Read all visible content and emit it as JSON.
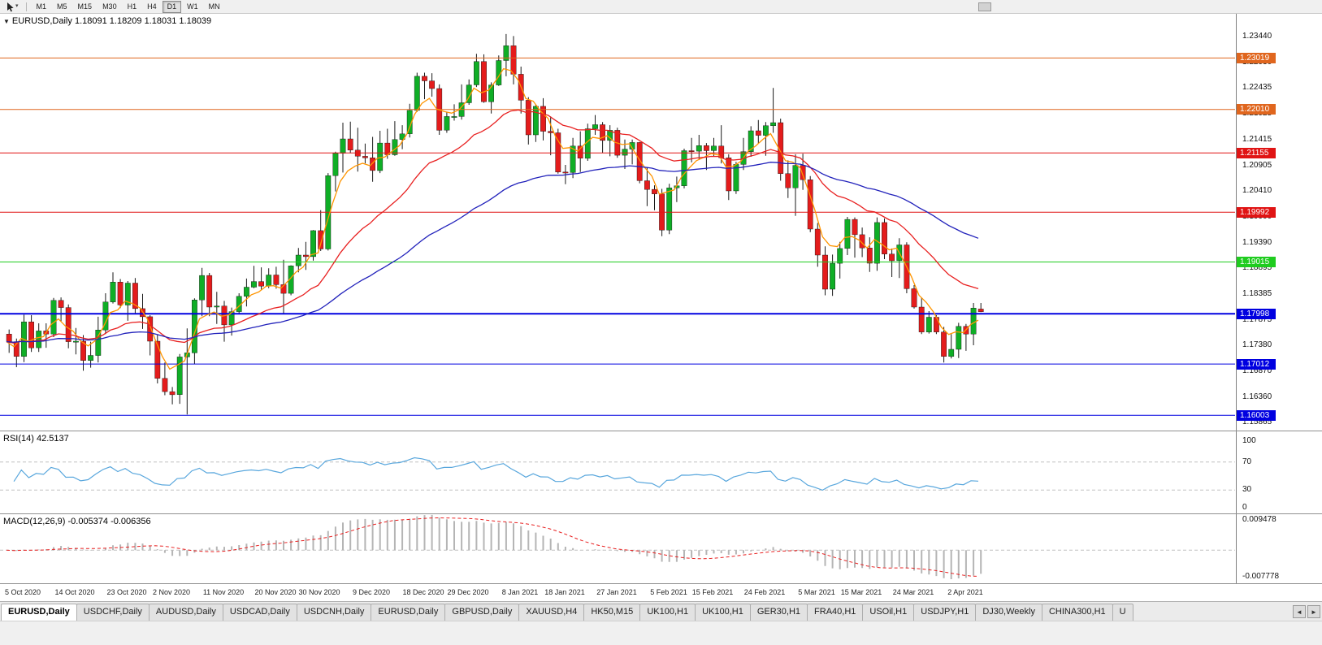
{
  "toolbar": {
    "caret": "▾",
    "timeframes": [
      {
        "label": "M1",
        "active": false
      },
      {
        "label": "M5",
        "active": false
      },
      {
        "label": "M15",
        "active": false
      },
      {
        "label": "M30",
        "active": false
      },
      {
        "label": "H1",
        "active": false
      },
      {
        "label": "H4",
        "active": false
      },
      {
        "label": "D1",
        "active": true
      },
      {
        "label": "W1",
        "active": false
      },
      {
        "label": "MN",
        "active": false
      }
    ]
  },
  "chart": {
    "menu_glyph": "▼",
    "symbol_title": "EURUSD,Daily",
    "ohlc_text": "1.18091 1.18209 1.18031 1.18039"
  },
  "chart_data": {
    "type": "candlestick",
    "symbol": "EURUSD",
    "period": "Daily",
    "last_ohlc": {
      "open": 1.18091,
      "high": 1.18209,
      "low": 1.18031,
      "close": 1.18039
    },
    "y_axis_ticks": [
      "1.23440",
      "1.22930",
      "1.22435",
      "1.21925",
      "1.21415",
      "1.20905",
      "1.20410",
      "1.19900",
      "1.19390",
      "1.18895",
      "1.18385",
      "1.17875",
      "1.17380",
      "1.16870",
      "1.16360",
      "1.15865"
    ],
    "h_lines": [
      {
        "price": 1.23019,
        "label": "1.23019",
        "color": "#e0661e",
        "width": 1
      },
      {
        "price": 1.2201,
        "label": "1.22010",
        "color": "#e0661e",
        "width": 1
      },
      {
        "price": 1.21155,
        "label": "1.21155",
        "color": "#e01414",
        "width": 1
      },
      {
        "price": 1.19992,
        "label": "1.19992",
        "color": "#e01414",
        "width": 1
      },
      {
        "price": 1.19015,
        "label": "1.19015",
        "color": "#1fcc1f",
        "width": 1
      },
      {
        "price": 1.17998,
        "label": "1.17998",
        "color": "#0000e0",
        "width": 2
      },
      {
        "price": 1.17012,
        "label": "1.17012",
        "color": "#0000e0",
        "width": 1
      },
      {
        "price": 1.16003,
        "label": "1.16003",
        "color": "#0000e0",
        "width": 1
      }
    ],
    "moving_averages": [
      {
        "name": "fast",
        "period": 5,
        "color": "#ff9500"
      },
      {
        "name": "medium",
        "period": 21,
        "color": "#e82020"
      },
      {
        "name": "slow",
        "period": 55,
        "color": "#2222bb"
      }
    ],
    "x_labels": [
      {
        "text": "5 Oct 2020",
        "i": 2
      },
      {
        "text": "14 Oct 2020",
        "i": 9
      },
      {
        "text": "23 Oct 2020",
        "i": 16
      },
      {
        "text": "2 Nov 2020",
        "i": 22
      },
      {
        "text": "11 Nov 2020",
        "i": 29
      },
      {
        "text": "20 Nov 2020",
        "i": 36
      },
      {
        "text": "30 Nov 2020",
        "i": 42
      },
      {
        "text": "9 Dec 2020",
        "i": 49
      },
      {
        "text": "18 Dec 2020",
        "i": 56
      },
      {
        "text": "29 Dec 2020",
        "i": 62
      },
      {
        "text": "8 Jan 2021",
        "i": 69
      },
      {
        "text": "18 Jan 2021",
        "i": 75
      },
      {
        "text": "27 Jan 2021",
        "i": 82
      },
      {
        "text": "5 Feb 2021",
        "i": 89
      },
      {
        "text": "15 Feb 2021",
        "i": 95
      },
      {
        "text": "24 Feb 2021",
        "i": 102
      },
      {
        "text": "5 Mar 2021",
        "i": 109
      },
      {
        "text": "15 Mar 2021",
        "i": 115
      },
      {
        "text": "24 Mar 2021",
        "i": 122
      },
      {
        "text": "2 Apr 2021",
        "i": 129
      }
    ],
    "candles": [
      [
        1.176,
        1.1769,
        1.1723,
        1.1745
      ],
      [
        1.1745,
        1.1751,
        1.1695,
        1.1716
      ],
      [
        1.1716,
        1.1798,
        1.1705,
        1.1784
      ],
      [
        1.1784,
        1.1797,
        1.1725,
        1.1733
      ],
      [
        1.1733,
        1.1781,
        1.1725,
        1.1766
      ],
      [
        1.1766,
        1.1781,
        1.1733,
        1.176
      ],
      [
        1.176,
        1.1831,
        1.1754,
        1.1826
      ],
      [
        1.1826,
        1.1832,
        1.1785,
        1.1812
      ],
      [
        1.1812,
        1.1818,
        1.1732,
        1.1745
      ],
      [
        1.1745,
        1.1772,
        1.172,
        1.1746
      ],
      [
        1.1746,
        1.1758,
        1.1688,
        1.1708
      ],
      [
        1.1708,
        1.1745,
        1.1694,
        1.1718
      ],
      [
        1.1718,
        1.1794,
        1.1704,
        1.1768
      ],
      [
        1.1768,
        1.184,
        1.176,
        1.1823
      ],
      [
        1.1823,
        1.1881,
        1.182,
        1.1862
      ],
      [
        1.1862,
        1.1868,
        1.1811,
        1.1817
      ],
      [
        1.1817,
        1.1864,
        1.1786,
        1.186
      ],
      [
        1.186,
        1.187,
        1.18,
        1.181
      ],
      [
        1.181,
        1.1839,
        1.177,
        1.1794
      ],
      [
        1.1794,
        1.1797,
        1.1718,
        1.1746
      ],
      [
        1.1746,
        1.1759,
        1.1663,
        1.1673
      ],
      [
        1.1673,
        1.1704,
        1.164,
        1.1647
      ],
      [
        1.1647,
        1.1656,
        1.1622,
        1.1641
      ],
      [
        1.1641,
        1.1721,
        1.1623,
        1.1715
      ],
      [
        1.1715,
        1.1771,
        1.1602,
        1.1723
      ],
      [
        1.1723,
        1.183,
        1.1701,
        1.1827
      ],
      [
        1.1827,
        1.189,
        1.1795,
        1.1875
      ],
      [
        1.1875,
        1.188,
        1.1795,
        1.1813
      ],
      [
        1.1813,
        1.1843,
        1.178,
        1.1815
      ],
      [
        1.1815,
        1.1825,
        1.1745,
        1.1778
      ],
      [
        1.1778,
        1.1812,
        1.1757,
        1.1804
      ],
      [
        1.1804,
        1.184,
        1.1799,
        1.1834
      ],
      [
        1.1834,
        1.1869,
        1.1814,
        1.1852
      ],
      [
        1.1852,
        1.1894,
        1.185,
        1.1863
      ],
      [
        1.1863,
        1.1891,
        1.1846,
        1.1854
      ],
      [
        1.1854,
        1.1889,
        1.185,
        1.1876
      ],
      [
        1.1876,
        1.1892,
        1.1849,
        1.1857
      ],
      [
        1.1857,
        1.1906,
        1.18,
        1.184
      ],
      [
        1.184,
        1.1895,
        1.1836,
        1.1894
      ],
      [
        1.1894,
        1.1929,
        1.1881,
        1.1915
      ],
      [
        1.1915,
        1.1941,
        1.1886,
        1.1912
      ],
      [
        1.1912,
        1.1964,
        1.1904,
        1.1963
      ],
      [
        1.1963,
        1.2003,
        1.1923,
        1.1927
      ],
      [
        1.1927,
        1.2076,
        1.1924,
        1.2071
      ],
      [
        1.2071,
        1.2118,
        1.204,
        1.2115
      ],
      [
        1.2115,
        1.2175,
        1.2077,
        1.2143
      ],
      [
        1.2143,
        1.2177,
        1.2115,
        1.2121
      ],
      [
        1.2121,
        1.2165,
        1.2079,
        1.2109
      ],
      [
        1.2109,
        1.2134,
        1.2095,
        1.2106
      ],
      [
        1.2106,
        1.2147,
        1.2059,
        1.2081
      ],
      [
        1.2081,
        1.2159,
        1.2076,
        1.2135
      ],
      [
        1.2135,
        1.2163,
        1.2104,
        1.2112
      ],
      [
        1.2112,
        1.2178,
        1.211,
        1.2142
      ],
      [
        1.2142,
        1.217,
        1.2123,
        1.2153
      ],
      [
        1.2153,
        1.2212,
        1.2146,
        1.2199
      ],
      [
        1.2199,
        1.2273,
        1.2196,
        1.2266
      ],
      [
        1.2266,
        1.2273,
        1.2221,
        1.2257
      ],
      [
        1.2257,
        1.2272,
        1.2226,
        1.2242
      ],
      [
        1.2242,
        1.225,
        1.2151,
        1.216
      ],
      [
        1.216,
        1.2195,
        1.2155,
        1.2187
      ],
      [
        1.2187,
        1.2211,
        1.2179,
        1.2187
      ],
      [
        1.2187,
        1.225,
        1.2181,
        1.2214
      ],
      [
        1.2214,
        1.226,
        1.221,
        1.2249
      ],
      [
        1.2249,
        1.231,
        1.2245,
        1.2295
      ],
      [
        1.2295,
        1.2309,
        1.2214,
        1.2216
      ],
      [
        1.2216,
        1.2254,
        1.2193,
        1.2249
      ],
      [
        1.2249,
        1.2307,
        1.2247,
        1.2297
      ],
      [
        1.2297,
        1.2349,
        1.2266,
        1.2326
      ],
      [
        1.2326,
        1.2345,
        1.225,
        1.227
      ],
      [
        1.227,
        1.2285,
        1.2193,
        1.2219
      ],
      [
        1.2219,
        1.2225,
        1.2132,
        1.2151
      ],
      [
        1.2151,
        1.221,
        1.2137,
        1.2207
      ],
      [
        1.2207,
        1.2223,
        1.214,
        1.2158
      ],
      [
        1.2158,
        1.2187,
        1.2111,
        1.2155
      ],
      [
        1.2155,
        1.2163,
        1.2075,
        1.2078
      ],
      [
        1.2078,
        1.2092,
        1.2054,
        1.2077
      ],
      [
        1.2077,
        1.2145,
        1.2066,
        1.2129
      ],
      [
        1.2129,
        1.2158,
        1.2078,
        1.2105
      ],
      [
        1.2105,
        1.2173,
        1.21,
        1.2163
      ],
      [
        1.2163,
        1.219,
        1.2151,
        1.2171
      ],
      [
        1.2171,
        1.2176,
        1.2116,
        1.214
      ],
      [
        1.214,
        1.217,
        1.2109,
        1.216
      ],
      [
        1.216,
        1.2165,
        1.2106,
        1.2111
      ],
      [
        1.2111,
        1.2142,
        1.2084,
        1.2123
      ],
      [
        1.2123,
        1.2142,
        1.2093,
        1.2136
      ],
      [
        1.2136,
        1.2137,
        1.2056,
        1.2061
      ],
      [
        1.2061,
        1.2087,
        1.2011,
        1.2044
      ],
      [
        1.2044,
        1.2052,
        1.2003,
        1.2035
      ],
      [
        1.2035,
        1.2045,
        1.1952,
        1.1964
      ],
      [
        1.1964,
        1.2055,
        1.1956,
        1.2047
      ],
      [
        1.2047,
        1.2069,
        1.2019,
        1.2051
      ],
      [
        1.2051,
        1.2124,
        1.2046,
        1.212
      ],
      [
        1.212,
        1.2145,
        1.2097,
        1.2119
      ],
      [
        1.2119,
        1.2151,
        1.2102,
        1.213
      ],
      [
        1.213,
        1.2135,
        1.2082,
        1.212
      ],
      [
        1.212,
        1.2145,
        1.2108,
        1.2129
      ],
      [
        1.2129,
        1.217,
        1.2095,
        1.2106
      ],
      [
        1.2106,
        1.2113,
        1.2023,
        1.2041
      ],
      [
        1.2041,
        1.2098,
        1.2035,
        1.2093
      ],
      [
        1.2093,
        1.2145,
        1.2082,
        1.2118
      ],
      [
        1.2118,
        1.2168,
        1.2108,
        1.2159
      ],
      [
        1.2159,
        1.218,
        1.2134,
        1.215
      ],
      [
        1.215,
        1.2176,
        1.211,
        1.2169
      ],
      [
        1.2169,
        1.2243,
        1.2155,
        1.2175
      ],
      [
        1.2175,
        1.2183,
        1.2061,
        1.2075
      ],
      [
        1.2075,
        1.2101,
        1.2027,
        1.2047
      ],
      [
        1.2047,
        1.2113,
        1.1992,
        1.2091
      ],
      [
        1.2091,
        1.2114,
        1.2043,
        1.2063
      ],
      [
        1.2063,
        1.207,
        1.196,
        1.1966
      ],
      [
        1.1966,
        1.1978,
        1.1892,
        1.1915
      ],
      [
        1.1915,
        1.1932,
        1.1836,
        1.1848
      ],
      [
        1.1848,
        1.1916,
        1.1835,
        1.1899
      ],
      [
        1.1899,
        1.1941,
        1.1869,
        1.1928
      ],
      [
        1.1928,
        1.199,
        1.1915,
        1.1985
      ],
      [
        1.1985,
        1.1989,
        1.191,
        1.1955
      ],
      [
        1.1955,
        1.1969,
        1.1911,
        1.1929
      ],
      [
        1.1929,
        1.195,
        1.1882,
        1.1899
      ],
      [
        1.1899,
        1.1989,
        1.1884,
        1.1979
      ],
      [
        1.1979,
        1.1987,
        1.1907,
        1.1917
      ],
      [
        1.1917,
        1.1928,
        1.1872,
        1.1904
      ],
      [
        1.1904,
        1.1948,
        1.187,
        1.1935
      ],
      [
        1.1935,
        1.194,
        1.184,
        1.1849
      ],
      [
        1.1849,
        1.1856,
        1.181,
        1.1813
      ],
      [
        1.1813,
        1.1832,
        1.176,
        1.1764
      ],
      [
        1.1764,
        1.1805,
        1.1761,
        1.1793
      ],
      [
        1.1793,
        1.1797,
        1.176,
        1.1764
      ],
      [
        1.1764,
        1.1774,
        1.1704,
        1.1716
      ],
      [
        1.1716,
        1.176,
        1.1712,
        1.173
      ],
      [
        1.173,
        1.1782,
        1.1713,
        1.1775
      ],
      [
        1.1775,
        1.178,
        1.1727,
        1.176
      ],
      [
        1.176,
        1.1821,
        1.1738,
        1.1811
      ],
      [
        1.18091,
        1.18209,
        1.18031,
        1.18039
      ]
    ],
    "rsi": {
      "label": "RSI(14)",
      "value": "42.5137",
      "period": 14,
      "axis": [
        "100",
        "70",
        "30",
        "0"
      ],
      "levels": [
        70,
        30
      ],
      "color": "#59a7dd"
    },
    "macd": {
      "label": "MACD(12,26,9)",
      "value_text": "-0.005374 -0.006356",
      "fast": 12,
      "slow": 26,
      "signal": 9,
      "axis_max": "0.009478",
      "axis_min": "-0.007778",
      "hist_color": "#b5b5b5",
      "signal_color": "#e82020"
    }
  },
  "tabs": {
    "nav_left": "◄",
    "nav_right": "►",
    "items": [
      {
        "label": "EURUSD,Daily",
        "active": true
      },
      {
        "label": "USDCHF,Daily",
        "active": false
      },
      {
        "label": "AUDUSD,Daily",
        "active": false
      },
      {
        "label": "USDCAD,Daily",
        "active": false
      },
      {
        "label": "USDCNH,Daily",
        "active": false
      },
      {
        "label": "EURUSD,Daily",
        "active": false
      },
      {
        "label": "GBPUSD,Daily",
        "active": false
      },
      {
        "label": "XAUUSD,H4",
        "active": false
      },
      {
        "label": "HK50,M15",
        "active": false
      },
      {
        "label": "UK100,H1",
        "active": false
      },
      {
        "label": "UK100,H1",
        "active": false
      },
      {
        "label": "GER30,H1",
        "active": false
      },
      {
        "label": "FRA40,H1",
        "active": false
      },
      {
        "label": "USOil,H1",
        "active": false
      },
      {
        "label": "USDJPY,H1",
        "active": false
      },
      {
        "label": "DJ30,Weekly",
        "active": false
      },
      {
        "label": "CHINA300,H1",
        "active": false
      },
      {
        "label": "U",
        "active": false
      }
    ]
  },
  "colors": {
    "up": "#0fae26",
    "down": "#e41c1c",
    "wick": "#1a1a1a",
    "panel_bg": "#ffffff",
    "chrome_bg": "#f0f0f0"
  }
}
